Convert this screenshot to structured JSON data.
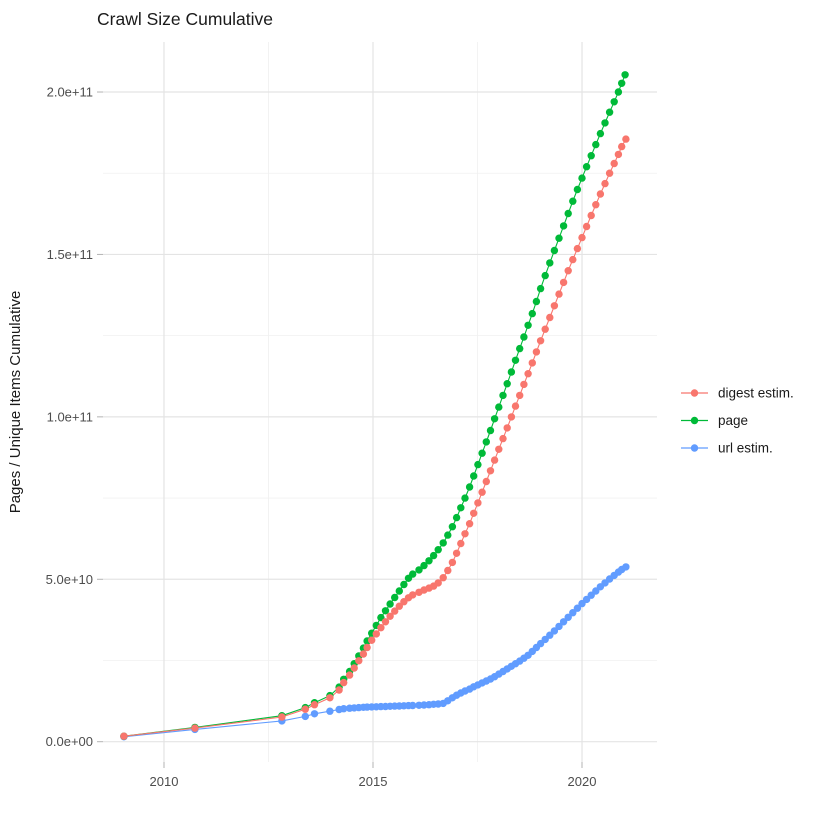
{
  "title": "Crawl Size Cumulative",
  "y_axis": {
    "title": "Pages / Unique Items Cumulative",
    "ticks": [
      {
        "v": 0,
        "label": "0.0e+00"
      },
      {
        "v": 50,
        "label": "5.0e+10"
      },
      {
        "v": 100,
        "label": "1.0e+11"
      },
      {
        "v": 150,
        "label": "1.5e+11"
      },
      {
        "v": 200,
        "label": "2.0e+11"
      }
    ],
    "minor": [
      25,
      75,
      125,
      175
    ]
  },
  "x_axis": {
    "ticks": [
      {
        "v": 2010,
        "label": "2010"
      },
      {
        "v": 2015,
        "label": "2015"
      },
      {
        "v": 2020,
        "label": "2020"
      }
    ],
    "minor": [
      2012.5,
      2017.5
    ]
  },
  "legend": {
    "items": [
      {
        "label": "digest estim.",
        "color": "#F8766D"
      },
      {
        "label": "page",
        "color": "#00BA38"
      },
      {
        "label": "url estim.",
        "color": "#619CFF"
      }
    ]
  },
  "chart_data": {
    "type": "line",
    "title": "Crawl Size Cumulative",
    "xlabel": "",
    "ylabel": "Pages / Unique Items Cumulative",
    "value_unit": "pages, values in billions (1e9)",
    "x_range": [
      2008.541,
      2021.794
    ],
    "y_range_billions": [
      -6.25,
      215.4
    ],
    "y_breaks_billions": [
      0,
      50,
      100,
      150,
      200
    ],
    "grid": true,
    "legend_position": "right",
    "marker": "point+line",
    "series": [
      {
        "name": "digest estim.",
        "color": "#F8766D",
        "points": [
          [
            2009.04,
            1.7
          ],
          [
            2010.74,
            4.2
          ],
          [
            2012.82,
            7.6
          ],
          [
            2013.38,
            10.0
          ],
          [
            2013.6,
            11.4
          ],
          [
            2013.97,
            13.5
          ],
          [
            2014.19,
            15.9
          ],
          [
            2014.3,
            18.2
          ],
          [
            2014.44,
            20.5
          ],
          [
            2014.55,
            22.7
          ],
          [
            2014.66,
            24.9
          ],
          [
            2014.77,
            27.0
          ],
          [
            2014.86,
            29.0
          ],
          [
            2014.97,
            31.2
          ],
          [
            2015.08,
            33.2
          ],
          [
            2015.19,
            35.1
          ],
          [
            2015.3,
            36.9
          ],
          [
            2015.41,
            38.6
          ],
          [
            2015.52,
            40.2
          ],
          [
            2015.63,
            41.7
          ],
          [
            2015.74,
            43.1
          ],
          [
            2015.85,
            44.3
          ],
          [
            2015.95,
            45.2
          ],
          [
            2016.1,
            46.0
          ],
          [
            2016.22,
            46.7
          ],
          [
            2016.34,
            47.3
          ],
          [
            2016.45,
            47.9
          ],
          [
            2016.56,
            48.9
          ],
          [
            2016.68,
            50.5
          ],
          [
            2016.79,
            52.7
          ],
          [
            2016.9,
            55.2
          ],
          [
            2017.0,
            58.0
          ],
          [
            2017.1,
            61.0
          ],
          [
            2017.2,
            64.0
          ],
          [
            2017.31,
            67.1
          ],
          [
            2017.41,
            70.3
          ],
          [
            2017.51,
            73.5
          ],
          [
            2017.61,
            76.8
          ],
          [
            2017.71,
            80.1
          ],
          [
            2017.81,
            83.4
          ],
          [
            2017.91,
            86.7
          ],
          [
            2018.01,
            90.0
          ],
          [
            2018.11,
            93.3
          ],
          [
            2018.21,
            96.6
          ],
          [
            2018.31,
            100.0
          ],
          [
            2018.41,
            103.3
          ],
          [
            2018.51,
            106.6
          ],
          [
            2018.61,
            110.0
          ],
          [
            2018.71,
            113.3
          ],
          [
            2018.81,
            116.6
          ],
          [
            2018.91,
            120.0
          ],
          [
            2019.01,
            123.4
          ],
          [
            2019.12,
            127.0
          ],
          [
            2019.23,
            130.6
          ],
          [
            2019.34,
            134.2
          ],
          [
            2019.45,
            137.8
          ],
          [
            2019.56,
            141.4
          ],
          [
            2019.67,
            145.0
          ],
          [
            2019.78,
            148.4
          ],
          [
            2019.89,
            151.8
          ],
          [
            2020.0,
            155.2
          ],
          [
            2020.11,
            158.6
          ],
          [
            2020.22,
            162.0
          ],
          [
            2020.33,
            165.3
          ],
          [
            2020.44,
            168.6
          ],
          [
            2020.55,
            171.8
          ],
          [
            2020.66,
            175.0
          ],
          [
            2020.77,
            178.0
          ],
          [
            2020.87,
            180.8
          ],
          [
            2020.95,
            183.2
          ],
          [
            2021.05,
            185.5
          ]
        ]
      },
      {
        "name": "page",
        "color": "#00BA38",
        "points": [
          [
            2009.04,
            1.7
          ],
          [
            2010.74,
            4.4
          ],
          [
            2012.82,
            8.0
          ],
          [
            2013.38,
            10.5
          ],
          [
            2013.6,
            12.0
          ],
          [
            2013.97,
            14.2
          ],
          [
            2014.19,
            16.8
          ],
          [
            2014.3,
            19.2
          ],
          [
            2014.44,
            21.6
          ],
          [
            2014.55,
            24.0
          ],
          [
            2014.66,
            26.4
          ],
          [
            2014.77,
            28.8
          ],
          [
            2014.86,
            31.0
          ],
          [
            2014.97,
            33.4
          ],
          [
            2015.08,
            35.8
          ],
          [
            2015.19,
            38.2
          ],
          [
            2015.3,
            40.3
          ],
          [
            2015.41,
            42.4
          ],
          [
            2015.52,
            44.4
          ],
          [
            2015.63,
            46.4
          ],
          [
            2015.74,
            48.4
          ],
          [
            2015.85,
            50.3
          ],
          [
            2015.95,
            51.6
          ],
          [
            2016.1,
            52.9
          ],
          [
            2016.22,
            54.2
          ],
          [
            2016.34,
            55.7
          ],
          [
            2016.45,
            57.3
          ],
          [
            2016.56,
            59.1
          ],
          [
            2016.68,
            61.2
          ],
          [
            2016.79,
            63.6
          ],
          [
            2016.9,
            66.2
          ],
          [
            2017.0,
            69.0
          ],
          [
            2017.1,
            72.0
          ],
          [
            2017.2,
            75.0
          ],
          [
            2017.31,
            78.4
          ],
          [
            2017.41,
            81.8
          ],
          [
            2017.51,
            85.3
          ],
          [
            2017.61,
            88.8
          ],
          [
            2017.71,
            92.3
          ],
          [
            2017.81,
            95.8
          ],
          [
            2017.91,
            99.4
          ],
          [
            2018.01,
            103.0
          ],
          [
            2018.11,
            106.6
          ],
          [
            2018.21,
            110.2
          ],
          [
            2018.31,
            113.8
          ],
          [
            2018.41,
            117.4
          ],
          [
            2018.51,
            121.0
          ],
          [
            2018.61,
            124.6
          ],
          [
            2018.71,
            128.2
          ],
          [
            2018.81,
            131.8
          ],
          [
            2018.91,
            135.5
          ],
          [
            2019.01,
            139.5
          ],
          [
            2019.12,
            143.5
          ],
          [
            2019.23,
            147.4
          ],
          [
            2019.34,
            151.2
          ],
          [
            2019.45,
            155.0
          ],
          [
            2019.56,
            158.8
          ],
          [
            2019.67,
            162.6
          ],
          [
            2019.78,
            166.4
          ],
          [
            2019.89,
            170.0
          ],
          [
            2020.0,
            173.5
          ],
          [
            2020.11,
            177.0
          ],
          [
            2020.22,
            180.4
          ],
          [
            2020.33,
            183.8
          ],
          [
            2020.44,
            187.2
          ],
          [
            2020.55,
            190.5
          ],
          [
            2020.66,
            193.8
          ],
          [
            2020.77,
            197.0
          ],
          [
            2020.87,
            200.0
          ],
          [
            2020.95,
            202.7
          ],
          [
            2021.03,
            205.3
          ]
        ]
      },
      {
        "name": "url estim.",
        "color": "#619CFF",
        "points": [
          [
            2009.04,
            1.5
          ],
          [
            2010.74,
            3.8
          ],
          [
            2012.82,
            6.4
          ],
          [
            2013.38,
            7.8
          ],
          [
            2013.6,
            8.6
          ],
          [
            2013.97,
            9.4
          ],
          [
            2014.19,
            9.9
          ],
          [
            2014.3,
            10.15
          ],
          [
            2014.44,
            10.3
          ],
          [
            2014.55,
            10.4
          ],
          [
            2014.66,
            10.5
          ],
          [
            2014.77,
            10.6
          ],
          [
            2014.86,
            10.65
          ],
          [
            2014.97,
            10.7
          ],
          [
            2015.08,
            10.75
          ],
          [
            2015.19,
            10.8
          ],
          [
            2015.3,
            10.85
          ],
          [
            2015.41,
            10.9
          ],
          [
            2015.52,
            10.95
          ],
          [
            2015.63,
            11.0
          ],
          [
            2015.74,
            11.05
          ],
          [
            2015.85,
            11.1
          ],
          [
            2015.95,
            11.15
          ],
          [
            2016.1,
            11.2
          ],
          [
            2016.22,
            11.3
          ],
          [
            2016.34,
            11.4
          ],
          [
            2016.45,
            11.5
          ],
          [
            2016.56,
            11.6
          ],
          [
            2016.68,
            11.8
          ],
          [
            2016.79,
            12.6
          ],
          [
            2016.9,
            13.5
          ],
          [
            2017.0,
            14.3
          ],
          [
            2017.1,
            15.0
          ],
          [
            2017.2,
            15.6
          ],
          [
            2017.31,
            16.2
          ],
          [
            2017.41,
            16.9
          ],
          [
            2017.51,
            17.5
          ],
          [
            2017.61,
            18.1
          ],
          [
            2017.71,
            18.7
          ],
          [
            2017.81,
            19.3
          ],
          [
            2017.91,
            20.0
          ],
          [
            2018.01,
            20.8
          ],
          [
            2018.11,
            21.6
          ],
          [
            2018.21,
            22.4
          ],
          [
            2018.31,
            23.2
          ],
          [
            2018.41,
            24.0
          ],
          [
            2018.51,
            24.8
          ],
          [
            2018.61,
            25.7
          ],
          [
            2018.71,
            26.6
          ],
          [
            2018.81,
            27.8
          ],
          [
            2018.91,
            29.0
          ],
          [
            2019.01,
            30.2
          ],
          [
            2019.12,
            31.5
          ],
          [
            2019.23,
            32.8
          ],
          [
            2019.34,
            34.1
          ],
          [
            2019.45,
            35.5
          ],
          [
            2019.56,
            36.9
          ],
          [
            2019.67,
            38.3
          ],
          [
            2019.78,
            39.7
          ],
          [
            2019.89,
            41.1
          ],
          [
            2020.0,
            42.5
          ],
          [
            2020.11,
            43.8
          ],
          [
            2020.22,
            45.1
          ],
          [
            2020.33,
            46.4
          ],
          [
            2020.44,
            47.7
          ],
          [
            2020.55,
            48.9
          ],
          [
            2020.66,
            50.1
          ],
          [
            2020.77,
            51.2
          ],
          [
            2020.87,
            52.2
          ],
          [
            2020.95,
            53.0
          ],
          [
            2021.05,
            53.8
          ]
        ]
      }
    ]
  }
}
